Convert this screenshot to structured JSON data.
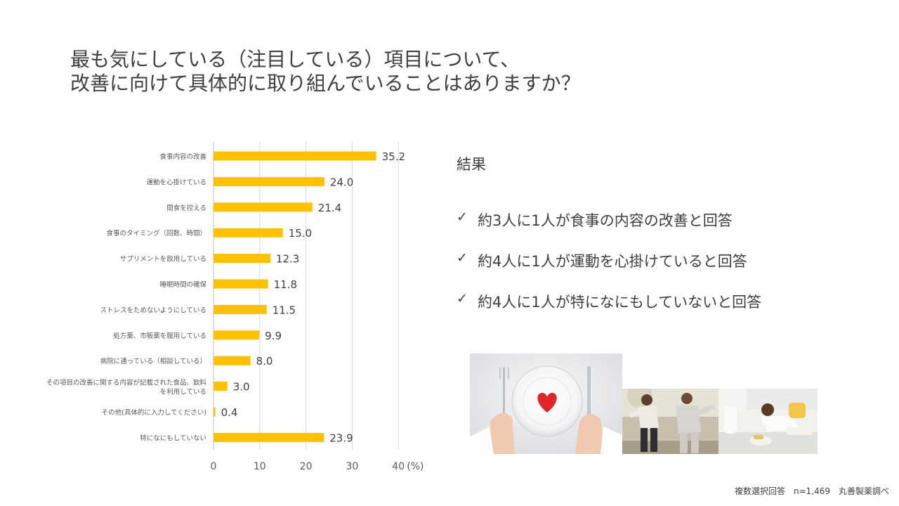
{
  "title": {
    "line1": "最も気にしている（注目している）項目について、",
    "line2": "改善に向けて具体的に取り組んでいることはありますか？"
  },
  "chart_data": {
    "type": "bar",
    "orientation": "horizontal",
    "categories": [
      "食事内容の改善",
      "運動を心掛けている",
      "間食を控える",
      "食事のタイミング（回数、時間）",
      "サプリメントを飲用している",
      "睡眠時間の確保",
      "ストレスをためないようにしている",
      "処方薬、市販薬を服用している",
      "病院に通っている（相談している）",
      "その項目の改善に関する内容が記載された食品、飲料を利用している",
      "その他(具体的に入力してください)",
      "特になにもしていない"
    ],
    "values": [
      35.2,
      24.0,
      21.4,
      15.0,
      12.3,
      11.8,
      11.5,
      9.9,
      8.0,
      3.0,
      0.4,
      23.9
    ],
    "value_labels": [
      "35.2",
      "24.0",
      "21.4",
      "15.0",
      "12.3",
      "11.8",
      "11.5",
      "9.9",
      "8.0",
      "3.0",
      "0.4",
      "23.9"
    ],
    "x_ticks": [
      "0",
      "10",
      "20",
      "30",
      "40"
    ],
    "x_unit": "(%)",
    "xlim": [
      0,
      40
    ],
    "grid": true,
    "bar_color": "#FFC000"
  },
  "results": {
    "heading": "結果",
    "check_icon": "✓",
    "items": [
      "約3人に1人が食事の内容の改善と回答",
      "約4人に1人が運動を心掛けていると回答",
      "約4人に1人が特になにもしていないと回答"
    ]
  },
  "footnote": "複数選択回答　n=1,469　丸善製薬調べ"
}
